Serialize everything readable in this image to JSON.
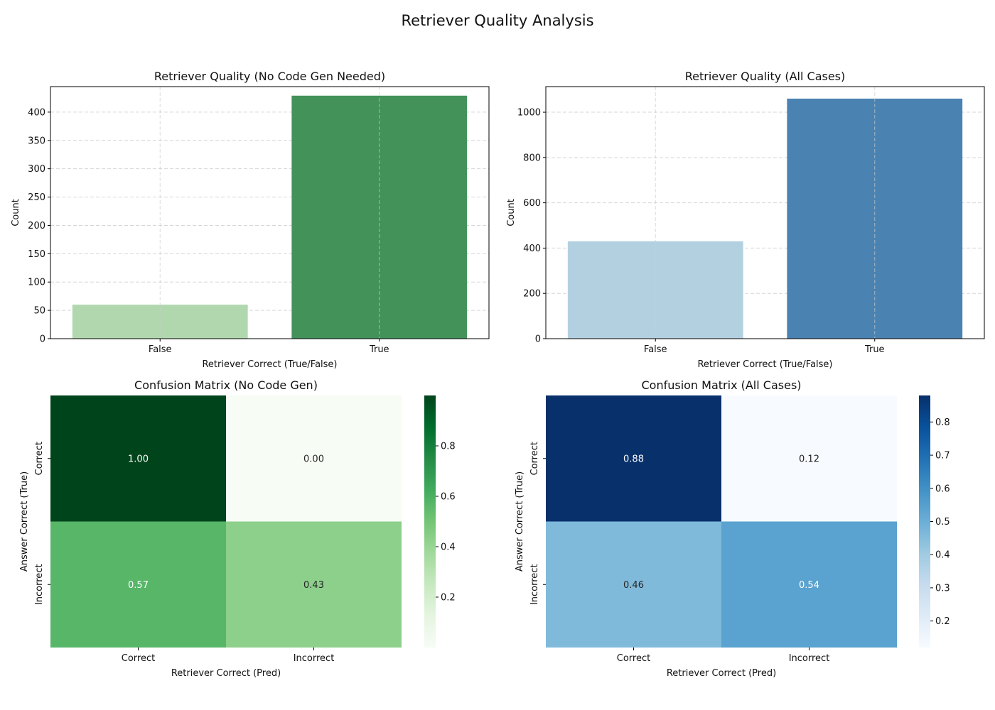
{
  "figure": {
    "title": "Retriever Quality Analysis"
  },
  "chart_data": [
    {
      "type": "bar",
      "title": "Retriever Quality (No Code Gen Needed)",
      "xlabel": "Retriever Correct (True/False)",
      "ylabel": "Count",
      "categories": [
        "False",
        "True"
      ],
      "values": [
        60,
        429
      ],
      "ylim": [
        0,
        445
      ],
      "yticks": [
        0,
        50,
        100,
        150,
        200,
        250,
        300,
        350,
        400
      ],
      "colors": [
        "#b1d7ae",
        "#43925a"
      ],
      "grid": true
    },
    {
      "type": "bar",
      "title": "Retriever Quality (All Cases)",
      "xlabel": "Retriever Correct (True/False)",
      "ylabel": "Count",
      "categories": [
        "False",
        "True"
      ],
      "values": [
        430,
        1060
      ],
      "ylim": [
        0,
        1113
      ],
      "yticks": [
        0,
        200,
        400,
        600,
        800,
        1000
      ],
      "colors": [
        "#b3d0e1",
        "#4a83b1"
      ],
      "grid": true
    },
    {
      "type": "heatmap",
      "title": "Confusion Matrix (No Code Gen)",
      "xlabel": "Retriever Correct (Pred)",
      "ylabel": "Answer Correct (True)",
      "x_categories": [
        "Correct",
        "Incorrect"
      ],
      "y_categories": [
        "Correct",
        "Incorrect"
      ],
      "values": [
        [
          1.0,
          0.0
        ],
        [
          0.57,
          0.43
        ]
      ],
      "cell_labels": [
        [
          "1.00",
          "0.00"
        ],
        [
          "0.57",
          "0.43"
        ]
      ],
      "colormap": "Greens",
      "colorbar_range": [
        0.0,
        1.0
      ],
      "colorbar_ticks": [
        0.2,
        0.4,
        0.6,
        0.8
      ]
    },
    {
      "type": "heatmap",
      "title": "Confusion Matrix (All Cases)",
      "xlabel": "Retriever Correct (Pred)",
      "ylabel": "Answer Correct (True)",
      "x_categories": [
        "Correct",
        "Incorrect"
      ],
      "y_categories": [
        "Correct",
        "Incorrect"
      ],
      "values": [
        [
          0.88,
          0.12
        ],
        [
          0.46,
          0.54
        ]
      ],
      "cell_labels": [
        [
          "0.88",
          "0.12"
        ],
        [
          "0.46",
          "0.54"
        ]
      ],
      "colormap": "Blues",
      "colorbar_range": [
        0.12,
        0.88
      ],
      "colorbar_ticks": [
        0.2,
        0.3,
        0.4,
        0.5,
        0.6,
        0.7,
        0.8
      ]
    }
  ]
}
